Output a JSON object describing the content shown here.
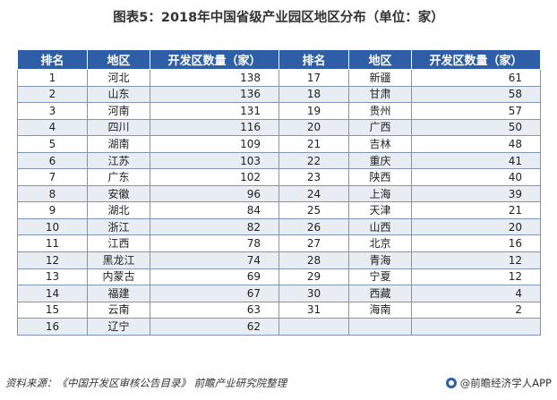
{
  "title": "图表5：2018年中国省级产业园区地区分布（单位：家）",
  "headers": [
    "排名",
    "地区",
    "开发区数量（家）",
    "排名",
    "地区",
    "开发区数量（家）"
  ],
  "rows": [
    [
      {
        "rank": "1",
        "region": "河北",
        "count": "138"
      },
      {
        "rank": "17",
        "region": "新疆",
        "count": "61"
      }
    ],
    [
      {
        "rank": "2",
        "region": "山东",
        "count": "136"
      },
      {
        "rank": "18",
        "region": "甘肃",
        "count": "58"
      }
    ],
    [
      {
        "rank": "3",
        "region": "河南",
        "count": "131"
      },
      {
        "rank": "19",
        "region": "贵州",
        "count": "57"
      }
    ],
    [
      {
        "rank": "4",
        "region": "四川",
        "count": "116"
      },
      {
        "rank": "20",
        "region": "广西",
        "count": "50"
      }
    ],
    [
      {
        "rank": "5",
        "region": "湖南",
        "count": "109"
      },
      {
        "rank": "21",
        "region": "吉林",
        "count": "48"
      }
    ],
    [
      {
        "rank": "6",
        "region": "江苏",
        "count": "103"
      },
      {
        "rank": "22",
        "region": "重庆",
        "count": "41"
      }
    ],
    [
      {
        "rank": "7",
        "region": "广东",
        "count": "102"
      },
      {
        "rank": "23",
        "region": "陕西",
        "count": "40"
      }
    ],
    [
      {
        "rank": "8",
        "region": "安徽",
        "count": "96"
      },
      {
        "rank": "24",
        "region": "上海",
        "count": "39"
      }
    ],
    [
      {
        "rank": "9",
        "region": "湖北",
        "count": "84"
      },
      {
        "rank": "25",
        "region": "天津",
        "count": "21"
      }
    ],
    [
      {
        "rank": "10",
        "region": "浙江",
        "count": "82"
      },
      {
        "rank": "26",
        "region": "山西",
        "count": "20"
      }
    ],
    [
      {
        "rank": "11",
        "region": "江西",
        "count": "78"
      },
      {
        "rank": "27",
        "region": "北京",
        "count": "16"
      }
    ],
    [
      {
        "rank": "12",
        "region": "黑龙江",
        "count": "74"
      },
      {
        "rank": "28",
        "region": "青海",
        "count": "12"
      }
    ],
    [
      {
        "rank": "13",
        "region": "内蒙古",
        "count": "69"
      },
      {
        "rank": "29",
        "region": "宁夏",
        "count": "12"
      }
    ],
    [
      {
        "rank": "14",
        "region": "福建",
        "count": "67"
      },
      {
        "rank": "30",
        "region": "西藏",
        "count": "4"
      }
    ],
    [
      {
        "rank": "15",
        "region": "云南",
        "count": "63"
      },
      {
        "rank": "31",
        "region": "海南",
        "count": "2"
      }
    ],
    [
      {
        "rank": "16",
        "region": "辽宁",
        "count": "62"
      },
      {
        "rank": "",
        "region": "",
        "count": ""
      }
    ]
  ],
  "footer": {
    "source": "资料来源：《中国开发区审核公告目录》  前瞻产业研究院整理",
    "brand": "@前瞻经济学人APP"
  },
  "colors": {
    "header_bg": "#2e5fa6",
    "stripe": "#e8ecf3"
  }
}
